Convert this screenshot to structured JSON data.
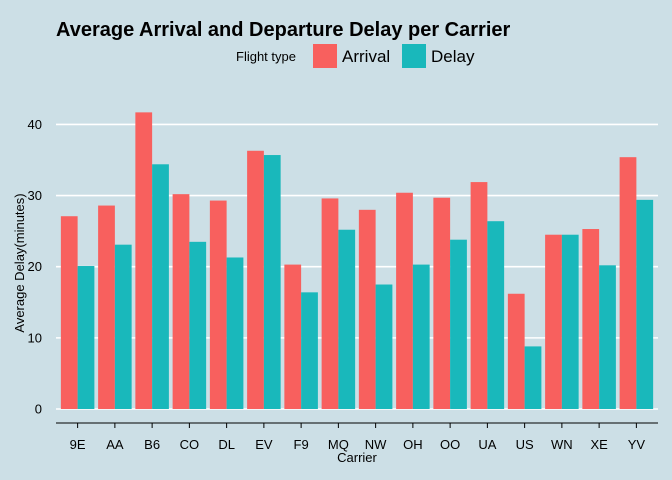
{
  "chart_data": {
    "type": "bar",
    "title": "Average Arrival and Departure Delay per Carrier",
    "xlabel": "Carrier",
    "ylabel": "Average Delay(minutes)",
    "legend_title": "Flight type",
    "legend_position": "top",
    "ylim": [
      0,
      44
    ],
    "yticks": [
      0,
      10,
      20,
      30,
      40
    ],
    "grid": true,
    "categories": [
      "9E",
      "AA",
      "B6",
      "CO",
      "DL",
      "EV",
      "F9",
      "MQ",
      "NW",
      "OH",
      "OO",
      "UA",
      "US",
      "WN",
      "XE",
      "YV"
    ],
    "series": [
      {
        "name": "Arrival",
        "color": "#f8605e",
        "values": [
          27.1,
          28.6,
          41.7,
          30.2,
          29.3,
          36.3,
          20.3,
          29.6,
          28.0,
          30.4,
          29.7,
          31.9,
          16.2,
          24.5,
          25.3,
          35.4
        ]
      },
      {
        "name": "Delay",
        "color": "#19b8bb",
        "values": [
          20.1,
          23.1,
          34.4,
          23.5,
          21.3,
          35.7,
          16.4,
          25.2,
          17.5,
          20.3,
          23.8,
          26.4,
          8.8,
          24.5,
          20.2,
          29.4
        ]
      }
    ]
  }
}
